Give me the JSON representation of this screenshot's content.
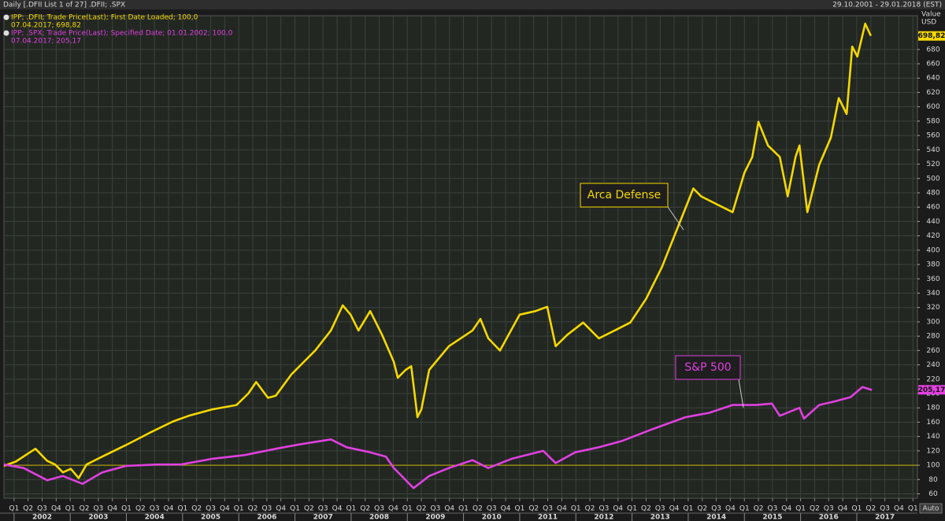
{
  "chart_data": {
    "type": "line",
    "title": "Daily [.DFII List 1 of 27] .DFII; .SPX",
    "date_range": "29.10.2001 - 29.01.2018 (EST)",
    "y_axis_label": [
      "Value",
      "USD"
    ],
    "auto_button": "Auto",
    "xlim": [
      2001.82,
      2018.08
    ],
    "ylim": [
      54,
      727
    ],
    "yticks": [
      60,
      80,
      100,
      120,
      140,
      160,
      180,
      200,
      220,
      240,
      260,
      280,
      300,
      320,
      340,
      360,
      380,
      400,
      420,
      440,
      460,
      480,
      500,
      520,
      540,
      560,
      580,
      600,
      620,
      640,
      660,
      680
    ],
    "reference_line": 100,
    "reference_color": "#c8b400",
    "grid": true,
    "year_ticks": [
      2002,
      2003,
      2004,
      2005,
      2006,
      2007,
      2008,
      2009,
      2010,
      2011,
      2012,
      2013,
      2014,
      2015,
      2016,
      2017
    ],
    "quarter_ticks": [
      {
        "value": 2002,
        "label": "Q1"
      },
      {
        "value": 2002.25,
        "label": "Q2"
      },
      {
        "value": 2002.5,
        "label": "Q3"
      },
      {
        "value": 2002.75,
        "label": "Q4"
      },
      {
        "value": 2003,
        "label": "Q1"
      },
      {
        "value": 2003.25,
        "label": "Q2"
      },
      {
        "value": 2003.5,
        "label": "Q3"
      },
      {
        "value": 2003.75,
        "label": "Q4"
      },
      {
        "value": 2004,
        "label": "Q1"
      },
      {
        "value": 2004.25,
        "label": "Q2"
      },
      {
        "value": 2004.5,
        "label": "Q3"
      },
      {
        "value": 2004.75,
        "label": "Q4"
      },
      {
        "value": 2005,
        "label": "Q1"
      },
      {
        "value": 2005.25,
        "label": "Q2"
      },
      {
        "value": 2005.5,
        "label": "Q3"
      },
      {
        "value": 2005.75,
        "label": "Q4"
      },
      {
        "value": 2006,
        "label": "Q1"
      },
      {
        "value": 2006.25,
        "label": "Q2"
      },
      {
        "value": 2006.5,
        "label": "Q3"
      },
      {
        "value": 2006.75,
        "label": "Q4"
      },
      {
        "value": 2007,
        "label": "Q1"
      },
      {
        "value": 2007.25,
        "label": "Q2"
      },
      {
        "value": 2007.5,
        "label": "Q3"
      },
      {
        "value": 2007.75,
        "label": "Q4"
      },
      {
        "value": 2008,
        "label": "Q1"
      },
      {
        "value": 2008.25,
        "label": "Q2"
      },
      {
        "value": 2008.5,
        "label": "Q3"
      },
      {
        "value": 2008.75,
        "label": "Q4"
      },
      {
        "value": 2009,
        "label": "Q1"
      },
      {
        "value": 2009.25,
        "label": "Q2"
      },
      {
        "value": 2009.5,
        "label": "Q3"
      },
      {
        "value": 2009.75,
        "label": "Q4"
      },
      {
        "value": 2010,
        "label": "Q1"
      },
      {
        "value": 2010.25,
        "label": "Q2"
      },
      {
        "value": 2010.5,
        "label": "Q3"
      },
      {
        "value": 2010.75,
        "label": "Q4"
      },
      {
        "value": 2011,
        "label": "Q1"
      },
      {
        "value": 2011.25,
        "label": "Q2"
      },
      {
        "value": 2011.5,
        "label": "Q3"
      },
      {
        "value": 2011.75,
        "label": "Q4"
      },
      {
        "value": 2012,
        "label": "Q1"
      },
      {
        "value": 2012.25,
        "label": "Q2"
      },
      {
        "value": 2012.5,
        "label": "Q3"
      },
      {
        "value": 2012.75,
        "label": "Q4"
      },
      {
        "value": 2013,
        "label": "Q1"
      },
      {
        "value": 2013.25,
        "label": "Q2"
      },
      {
        "value": 2013.5,
        "label": "Q3"
      },
      {
        "value": 2013.75,
        "label": "Q4"
      },
      {
        "value": 2014,
        "label": "Q1"
      },
      {
        "value": 2014.25,
        "label": "Q2"
      },
      {
        "value": 2014.5,
        "label": "Q3"
      },
      {
        "value": 2014.75,
        "label": "Q4"
      },
      {
        "value": 2015,
        "label": "Q1"
      },
      {
        "value": 2015.25,
        "label": "Q2"
      },
      {
        "value": 2015.5,
        "label": "Q3"
      },
      {
        "value": 2015.75,
        "label": "Q4"
      },
      {
        "value": 2016,
        "label": "Q1"
      },
      {
        "value": 2016.25,
        "label": "Q2"
      },
      {
        "value": 2016.5,
        "label": "Q3"
      },
      {
        "value": 2016.75,
        "label": "Q4"
      },
      {
        "value": 2017,
        "label": "Q1"
      },
      {
        "value": 2017.25,
        "label": "Q2"
      },
      {
        "value": 2017.5,
        "label": "Q3"
      },
      {
        "value": 2017.75,
        "label": "Q4"
      },
      {
        "value": 2018,
        "label": "Q1"
      }
    ],
    "series": [
      {
        "name": "IPP; .DFII; Trade Price(Last); First Date Loaded; 100,0",
        "legend_detail": "07.04.2017; 698,82",
        "annotation": "Arca Defense",
        "color": "#f5d800",
        "last_value": 698.82,
        "last_value_label": "698,82",
        "x": [
          2001.82,
          2002.03,
          2002.38,
          2002.59,
          2002.73,
          2002.87,
          2003.01,
          2003.15,
          2003.29,
          2003.57,
          2003.99,
          2004.41,
          2004.83,
          2005.11,
          2005.53,
          2005.96,
          2006.17,
          2006.31,
          2006.52,
          2006.66,
          2006.94,
          2007.36,
          2007.64,
          2007.85,
          2007.99,
          2008.13,
          2008.34,
          2008.55,
          2008.76,
          2008.83,
          2008.97,
          2009.07,
          2009.18,
          2009.25,
          2009.39,
          2009.74,
          2010.16,
          2010.3,
          2010.44,
          2010.65,
          2011.0,
          2011.28,
          2011.49,
          2011.64,
          2011.85,
          2012.13,
          2012.41,
          2012.69,
          2012.97,
          2013.25,
          2013.53,
          2013.81,
          2014.09,
          2014.23,
          2014.51,
          2014.79,
          2015.0,
          2015.14,
          2015.25,
          2015.42,
          2015.63,
          2015.77,
          2015.91,
          2015.98,
          2016.12,
          2016.33,
          2016.54,
          2016.68,
          2016.82,
          2016.92,
          2017.01,
          2017.15,
          2017.25
        ],
        "values": [
          99,
          105,
          123,
          106,
          101,
          90,
          95,
          82,
          101,
          112,
          128,
          145,
          161,
          169,
          178,
          184,
          200,
          216,
          194,
          197,
          227,
          260,
          288,
          323,
          310,
          288,
          315,
          282,
          244,
          222,
          233,
          238,
          167,
          178,
          233,
          266,
          288,
          304,
          277,
          260,
          310,
          315,
          321,
          266,
          282,
          299,
          277,
          288,
          299,
          332,
          376,
          431,
          486,
          475,
          464,
          453,
          508,
          530,
          579,
          546,
          530,
          475,
          530,
          546,
          453,
          519,
          557,
          612,
          590,
          684,
          670,
          716,
          699
        ]
      },
      {
        "name": "IPP; .SPX; Trade Price(Last); Specified Date; 01.01.2002; 100,0",
        "legend_detail": "07.04.2017; 205,17",
        "annotation": "S&P 500",
        "color": "#e040e0",
        "last_value": 205.17,
        "last_value_label": "205,17",
        "x": [
          2001.82,
          2002.17,
          2002.59,
          2002.87,
          2003.22,
          2003.57,
          2003.99,
          2004.55,
          2004.97,
          2005.53,
          2006.1,
          2006.66,
          2007.08,
          2007.64,
          2007.92,
          2008.34,
          2008.62,
          2008.76,
          2008.9,
          2009.11,
          2009.39,
          2009.74,
          2010.16,
          2010.44,
          2010.86,
          2011.42,
          2011.64,
          2011.99,
          2012.41,
          2012.83,
          2013.39,
          2013.95,
          2014.37,
          2014.79,
          2015.21,
          2015.49,
          2015.63,
          2015.98,
          2016.06,
          2016.33,
          2016.61,
          2016.89,
          2017.1,
          2017.27
        ],
        "values": [
          101,
          96,
          79,
          85,
          74,
          90,
          99,
          101,
          101,
          109,
          114,
          123,
          129,
          136,
          125,
          118,
          112,
          96,
          85,
          68,
          85,
          96,
          107,
          96,
          109,
          120,
          103,
          118,
          125,
          134,
          151,
          167,
          173,
          184,
          184,
          186,
          169,
          180,
          165,
          184,
          189,
          195,
          209,
          205
        ]
      }
    ]
  }
}
